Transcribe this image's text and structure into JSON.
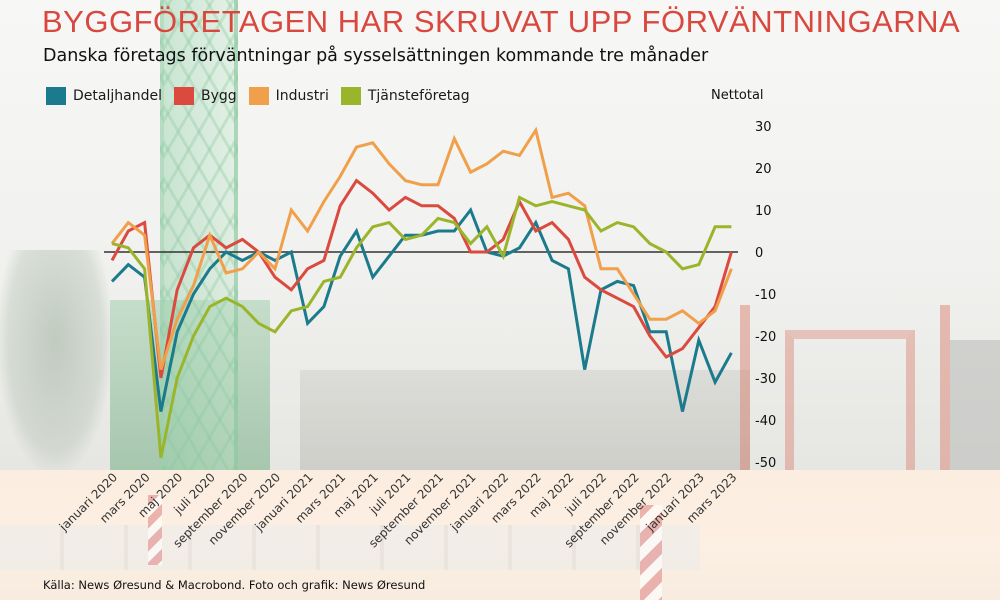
{
  "title": "BYGGFÖRETAGEN HAR SKRUVAT UPP FÖRVÄNTNINGARNA",
  "subtitle": "Danska företags förväntningar på sysselsättningen kommande tre månader",
  "source": "Källa: News Øresund & Macrobond. Foto och grafik: News Øresund",
  "chart_data": {
    "type": "line",
    "title": "BYGGFÖRETAGEN HAR SKRUVAT UPP FÖRVÄNTNINGARNA",
    "subtitle": "Danska företags förväntningar på sysselsättningen kommande tre månader",
    "xlabel": "",
    "ylabel": "Nettotal",
    "ylim": [
      -50,
      30
    ],
    "yticks": [
      30,
      20,
      10,
      0,
      -10,
      -20,
      -30,
      -40,
      -50
    ],
    "y_axis_side": "right",
    "zero_line": true,
    "grid": false,
    "legend_position": "top-left",
    "x": [
      "jan 2020",
      "feb 2020",
      "mar 2020",
      "apr 2020",
      "maj 2020",
      "jun 2020",
      "jul 2020",
      "aug 2020",
      "sep 2020",
      "okt 2020",
      "nov 2020",
      "dec 2020",
      "jan 2021",
      "feb 2021",
      "mar 2021",
      "apr 2021",
      "maj 2021",
      "jun 2021",
      "jul 2021",
      "aug 2021",
      "sep 2021",
      "okt 2021",
      "nov 2021",
      "dec 2021",
      "jan 2022",
      "feb 2022",
      "mar 2022",
      "apr 2022",
      "maj 2022",
      "jun 2022",
      "jul 2022",
      "aug 2022",
      "sep 2022",
      "okt 2022",
      "nov 2022",
      "dec 2022",
      "jan 2023",
      "feb 2023",
      "mar 2023"
    ],
    "xtick_labels": [
      "januari 2020",
      "mars 2020",
      "maj 2020",
      "juli 2020",
      "september 2020",
      "november 2020",
      "januari 2021",
      "mars 2021",
      "maj 2021",
      "juli 2021",
      "september 2021",
      "november 2021",
      "januari 2022",
      "mars 2022",
      "maj 2022",
      "juli 2022",
      "september 2022",
      "november 2022",
      "januari 2023",
      "mars 2023"
    ],
    "series": [
      {
        "name": "Detaljhandel",
        "color": "#1b7b8c",
        "values": [
          -7,
          -3,
          -6,
          -38,
          -19,
          -10,
          -4,
          0,
          -2,
          0,
          -2,
          0,
          -17,
          -13,
          -1,
          5,
          -6,
          -1,
          4,
          4,
          5,
          5,
          10,
          0,
          -1,
          1,
          7,
          -2,
          -4,
          -28,
          -9,
          -7,
          -8,
          -19,
          -19,
          -38,
          -21,
          -31,
          -24
        ]
      },
      {
        "name": "Bygg",
        "color": "#db4a3f",
        "values": [
          -2,
          5,
          7,
          -30,
          -9,
          1,
          4,
          1,
          3,
          0,
          -6,
          -9,
          -4,
          -2,
          11,
          17,
          14,
          10,
          13,
          11,
          11,
          8,
          0,
          0,
          3,
          12,
          5,
          7,
          3,
          -6,
          -9,
          -11,
          -13,
          -20,
          -25,
          -23,
          -18,
          -13,
          0
        ]
      },
      {
        "name": "Industri",
        "color": "#f0a04a",
        "values": [
          2,
          7,
          4,
          -28,
          -16,
          -8,
          4,
          -5,
          -4,
          0,
          -4,
          10,
          5,
          12,
          18,
          25,
          26,
          21,
          17,
          16,
          16,
          27,
          19,
          21,
          24,
          23,
          29,
          13,
          14,
          11,
          -4,
          -4,
          -10,
          -16,
          -16,
          -14,
          -17,
          -14,
          -4
        ]
      },
      {
        "name": "Tjänsteföretag",
        "color": "#9bb52b",
        "values": [
          2,
          1,
          -4,
          -49,
          -30,
          -20,
          -13,
          -11,
          -13,
          -17,
          -19,
          -14,
          -13,
          -7,
          -6,
          1,
          6,
          7,
          3,
          4,
          8,
          7,
          2,
          6,
          -1,
          13,
          11,
          12,
          11,
          10,
          5,
          7,
          6,
          2,
          0,
          -4,
          -3,
          6,
          6
        ]
      }
    ]
  }
}
